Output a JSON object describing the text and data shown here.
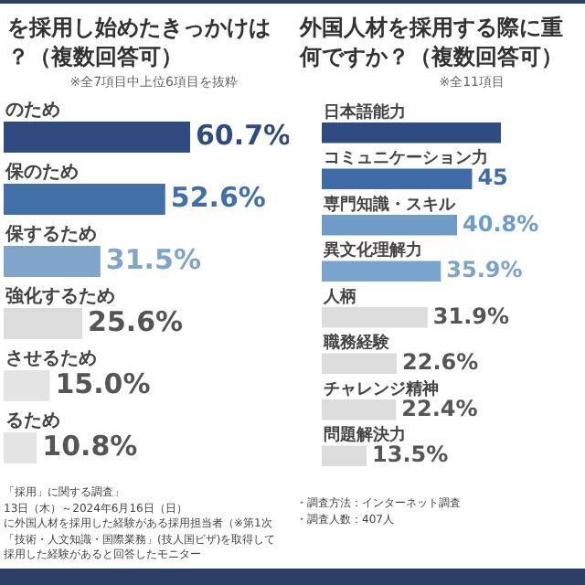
{
  "chart_data": [
    {
      "type": "bar",
      "orientation": "horizontal",
      "title": "を採用し始めたきっかけは？（複数回答可）",
      "subtitle": "※全7項目中上位6項目を抜粋",
      "categories": [
        "のため",
        "保のため",
        "保するため",
        "強化するため",
        "させるため",
        "るため"
      ],
      "values": [
        60.7,
        52.6,
        31.5,
        25.6,
        15.0,
        10.8
      ],
      "value_labels": [
        "60.7%",
        "52.6%",
        "31.5%",
        "25.6%",
        "15.0%",
        "10.8%"
      ],
      "colors": [
        "#2f4b80",
        "#4170a8",
        "#80a5c9",
        "#dcdcdc",
        "#e4e4e4",
        "#e4e4e4"
      ],
      "tick_labels": false,
      "annotations": [
        "「採用」に関する調査」",
        "13日（木）～2024年6月16日（日）",
        "に外国人材を採用した経験がある採用担当者（※第1次",
        "「技術・人文知識・国際業務」(技人国ビザ)を取得して",
        "採用した経験があると回答したモニター"
      ]
    },
    {
      "type": "bar",
      "orientation": "horizontal",
      "title": "外国人材を採用する際に重何ですか？（複数回答可）",
      "subtitle": "※全11項目",
      "categories": [
        "日本語能力",
        "コミュニケーション力",
        "専門知識・スキル",
        "異文化理解力",
        "人柄",
        "職務経験",
        "チャレンジ精神",
        "問題解決力"
      ],
      "values": [
        54,
        45.3,
        40.8,
        35.9,
        31.9,
        22.6,
        22.4,
        13.5
      ],
      "value_labels": [
        null,
        "45",
        "40.8%",
        "35.9%",
        "31.9%",
        "22.6%",
        "22.4%",
        "13.5%"
      ],
      "colors": [
        "#2f4b80",
        "#3f6ca7",
        "#6f9cc7",
        "#7aa4cc",
        "#dcdcdc",
        "#dcdcdc",
        "#dcdcdc",
        "#dcdcdc"
      ],
      "tick_labels": false,
      "annotations": [
        "・調査方法：インターネット調査",
        "・調査人数：407人"
      ]
    }
  ]
}
